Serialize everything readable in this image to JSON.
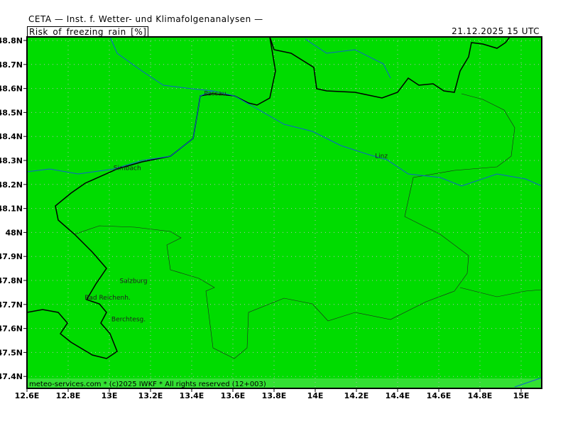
{
  "header": {
    "institution": "CETA — Inst. f. Wetter- und Klimafolgenanalysen —",
    "parameter": "Risk_of_freezing_rain_[%]",
    "valid_time": "21.12.2025  15 UTC"
  },
  "footer": {
    "credit": "meteo-services.com * (c)2025 IWKF * All rights reserved (12+003)"
  },
  "chart_data": {
    "type": "heatmap",
    "title": "Risk_of_freezing_rain_[%]",
    "xlim": [
      12.6,
      15.1
    ],
    "ylim": [
      47.35,
      48.82
    ],
    "grid": true,
    "x_ticks": [
      "12.6E",
      "12.8E",
      "13E",
      "13.2E",
      "13.4E",
      "13.6E",
      "13.8E",
      "14E",
      "14.2E",
      "14.4E",
      "14.6E",
      "14.8E",
      "15E"
    ],
    "y_ticks": [
      "48.8N",
      "48.7N",
      "48.6N",
      "48.5N",
      "48.4N",
      "48.3N",
      "48.2N",
      "48.1N",
      "48N",
      "47.9N",
      "47.8N",
      "47.7N",
      "47.6N",
      "47.5N",
      "47.4N"
    ],
    "field_value_percent": 0,
    "colors": {
      "field": "#00dc00",
      "footer_band": "#33e033",
      "rivers": "#1060d0",
      "borders": "#000000",
      "grid": "#b8b8b8"
    },
    "cities": [
      {
        "name": "Passau",
        "lon": 13.46,
        "lat": 48.57
      },
      {
        "name": "Linz",
        "lon": 14.29,
        "lat": 48.31
      },
      {
        "name": "Simbach",
        "lon": 13.02,
        "lat": 48.26
      },
      {
        "name": "Salzburg",
        "lon": 13.05,
        "lat": 47.79
      },
      {
        "name": "Bad Reichenh.",
        "lon": 12.88,
        "lat": 47.72
      },
      {
        "name": "Berchtesg.",
        "lon": 13.01,
        "lat": 47.63
      }
    ]
  }
}
